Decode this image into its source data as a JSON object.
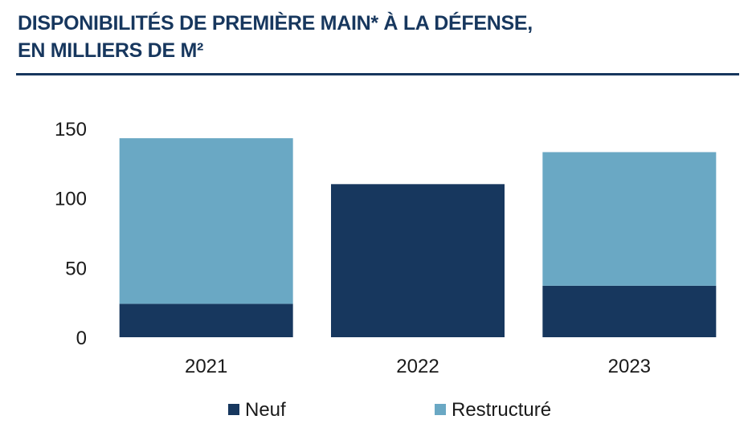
{
  "header": {
    "title_line1": "DISPONIBILITÉS DE PREMIÈRE MAIN* À LA DÉFENSE,",
    "title_line2": "EN MILLIERS DE M²"
  },
  "colors": {
    "title": "#17375e",
    "neuf": "#17375e",
    "restructure": "#6aa8c4"
  },
  "chart_data": {
    "type": "bar",
    "stacked": true,
    "categories": [
      "2021",
      "2022",
      "2023"
    ],
    "series": [
      {
        "name": "Neuf",
        "color": "#17375e",
        "values": [
          24,
          110,
          37
        ]
      },
      {
        "name": "Restructuré",
        "color": "#6aa8c4",
        "values": [
          119,
          0,
          96
        ]
      }
    ],
    "yticks": [
      0,
      50,
      100,
      150
    ],
    "ylim": [
      0,
      150
    ],
    "grid": false,
    "legend": "bottom"
  }
}
